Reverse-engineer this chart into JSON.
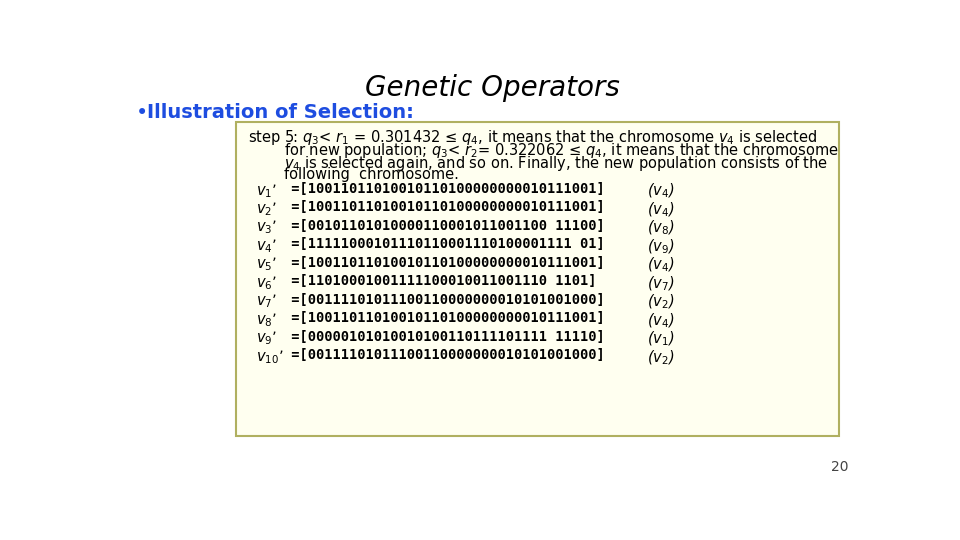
{
  "title": "Genetic Operators",
  "title_fontsize": 20,
  "title_color": "#000000",
  "bullet_text": "Illustration of Selection:",
  "bullet_color": "#1e4de0",
  "bullet_fontsize": 14,
  "box_bg": "#fffff0",
  "box_edge": "#b0b060",
  "step_line1": "step 5: $q_3$< $r_1$ = 0.301432 ≤ $q_4$, it means that the chromosome $v_4$ is selected",
  "step_line2": "for new population; $q_3$< $r_2$= 0.322062 ≤ $q_4$, it means that the chromosome",
  "step_line3": "$v_4$ is selected again, and so on. Finally, the new population consists of the",
  "step_line4": "following  chromosome.",
  "chromosomes": [
    {
      "label": "$v_1$’ ",
      "seq": " =[10011011010010110100000000010111001]",
      "src": "($v_4$)"
    },
    {
      "label": "$v_2$’ ",
      "seq": " =[10011011010010110100000000010111001]",
      "src": "($v_4$)"
    },
    {
      "label": "$v_3$’ ",
      "seq": " =[00101101010000110001011001100 11100]",
      "src": "($v_8$)"
    },
    {
      "label": "$v_4$’ ",
      "seq": " =[11111000101110110001110100001111 01]",
      "src": "($v_9$)"
    },
    {
      "label": "$v_5$’ ",
      "seq": " =[10011011010010110100000000010111001]",
      "src": "($v_4$)"
    },
    {
      "label": "$v_6$’ ",
      "seq": " =[11010001001111100010011001110 1101]",
      "src": "($v_7$)"
    },
    {
      "label": "$v_7$’ ",
      "seq": " =[00111101011100110000000010101001000]",
      "src": "($v_2$)"
    },
    {
      "label": "$v_8$’ ",
      "seq": " =[10011011010010110100000000010111001]",
      "src": "($v_4$)"
    },
    {
      "label": "$v_9$’ ",
      "seq": " =[00000101010010100110111101111 11110]",
      "src": "($v_1$)"
    },
    {
      "label": "$v_{10}$’",
      "seq": " =[00111101011100110000000010101001000]",
      "src": "($v_2$)"
    }
  ],
  "page_number": "20",
  "text_fontsize": 10.5,
  "mono_fontsize": 9.8,
  "label_fontsize": 10.5
}
